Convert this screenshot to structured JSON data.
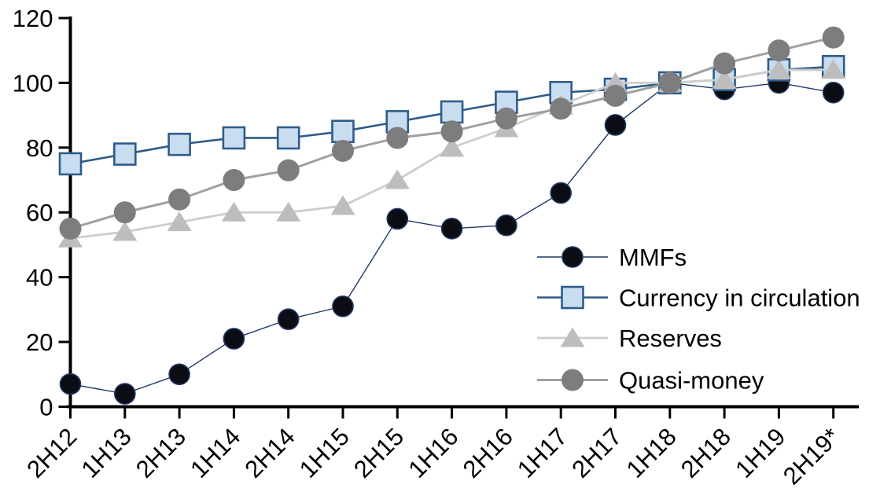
{
  "chart_data": {
    "type": "line",
    "title": "",
    "xlabel": "",
    "ylabel": "",
    "ylim": [
      0,
      120
    ],
    "y_ticks": [
      0,
      20,
      40,
      60,
      80,
      100,
      120
    ],
    "grid": false,
    "legend_position": "inside-right-middle",
    "categories": [
      "2H12",
      "1H13",
      "2H13",
      "1H14",
      "2H14",
      "1H15",
      "2H15",
      "1H16",
      "2H16",
      "1H17",
      "2H17",
      "1H18",
      "2H18",
      "1H19",
      "2H19*"
    ],
    "series": [
      {
        "name": "MMFs",
        "marker": "circle",
        "marker_color": "#0c0c14",
        "marker_border": "#1f3864",
        "line_color": "#1f3864",
        "line_width": 1.4,
        "marker_radius": 13,
        "values": [
          7,
          4,
          10,
          21,
          27,
          31,
          58,
          55,
          56,
          66,
          87,
          100,
          98,
          100,
          97
        ]
      },
      {
        "name": "Currency in circulation",
        "marker": "square",
        "marker_color": "#c9ddf1",
        "marker_border": "#2e5c8a",
        "line_color": "#2e5c8a",
        "line_width": 2.6,
        "marker_radius": 13.5,
        "values": [
          75,
          78,
          81,
          83,
          83,
          85,
          88,
          91,
          94,
          97,
          98,
          100,
          101,
          104,
          105
        ]
      },
      {
        "name": "Reserves",
        "marker": "triangle",
        "marker_color": "#bdbdbd",
        "marker_border": "",
        "line_color": "#cdcdcd",
        "line_width": 2.8,
        "marker_radius": 14,
        "values": [
          52,
          54,
          57,
          60,
          60,
          62,
          70,
          80,
          86,
          93,
          100,
          100,
          101,
          104,
          104
        ]
      },
      {
        "name": "Quasi-money",
        "marker": "circle",
        "marker_color": "#7d7d7d",
        "marker_border": "",
        "line_color": "#a0a0a0",
        "line_width": 3,
        "marker_radius": 14,
        "values": [
          55,
          60,
          64,
          70,
          73,
          79,
          83,
          85,
          89,
          92,
          96,
          100,
          106,
          110,
          114
        ]
      }
    ],
    "axis_color": "#000000",
    "label_color": "#000000"
  }
}
